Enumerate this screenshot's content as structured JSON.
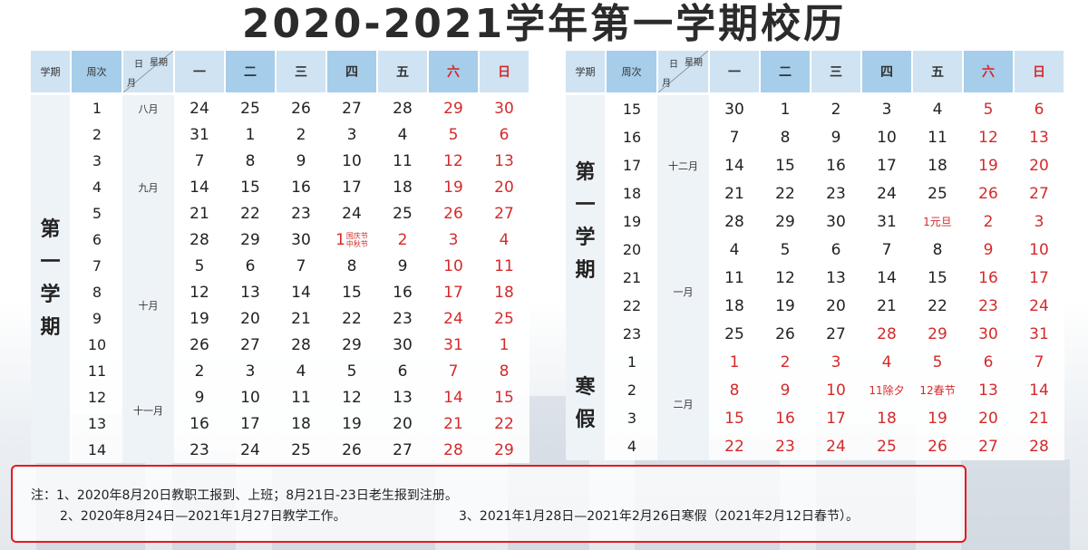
{
  "title": "2020-2021学年第一学期校历",
  "header": {
    "term": "学期",
    "week": "周次",
    "diag_day": "日",
    "diag_weekday": "星期",
    "diag_month": "月",
    "days": [
      "一",
      "二",
      "三",
      "四",
      "五",
      "六",
      "日"
    ]
  },
  "left": {
    "term_label": [
      "第",
      "一",
      "学",
      "期"
    ],
    "months": [
      "八月",
      "九月",
      "十月",
      "十一月"
    ],
    "rows": [
      {
        "week": "1",
        "days": [
          "24",
          "25",
          "26",
          "27",
          "28",
          "29",
          "30"
        ]
      },
      {
        "week": "2",
        "days": [
          "31",
          "1",
          "2",
          "3",
          "4",
          "5",
          "6"
        ]
      },
      {
        "week": "3",
        "days": [
          "7",
          "8",
          "9",
          "10",
          "11",
          "12",
          "13"
        ]
      },
      {
        "week": "4",
        "days": [
          "14",
          "15",
          "16",
          "17",
          "18",
          "19",
          "20"
        ]
      },
      {
        "week": "5",
        "days": [
          "21",
          "22",
          "23",
          "24",
          "25",
          "26",
          "27"
        ]
      },
      {
        "week": "6",
        "days": [
          "28",
          "29",
          "30",
          "1",
          "2",
          "3",
          "4"
        ]
      },
      {
        "week": "7",
        "days": [
          "5",
          "6",
          "7",
          "8",
          "9",
          "10",
          "11"
        ]
      },
      {
        "week": "8",
        "days": [
          "12",
          "13",
          "14",
          "15",
          "16",
          "17",
          "18"
        ]
      },
      {
        "week": "9",
        "days": [
          "19",
          "20",
          "21",
          "22",
          "23",
          "24",
          "25"
        ]
      },
      {
        "week": "10",
        "days": [
          "26",
          "27",
          "28",
          "29",
          "30",
          "31",
          "1"
        ]
      },
      {
        "week": "11",
        "days": [
          "2",
          "3",
          "4",
          "5",
          "6",
          "7",
          "8"
        ]
      },
      {
        "week": "12",
        "days": [
          "9",
          "10",
          "11",
          "12",
          "13",
          "14",
          "15"
        ]
      },
      {
        "week": "13",
        "days": [
          "16",
          "17",
          "18",
          "19",
          "20",
          "21",
          "22"
        ]
      },
      {
        "week": "14",
        "days": [
          "23",
          "24",
          "25",
          "26",
          "27",
          "28",
          "29"
        ]
      }
    ],
    "holiday_note_1": "国庆节",
    "holiday_note_2": "中秋节"
  },
  "right": {
    "term_label": [
      "第",
      "一",
      "学",
      "期"
    ],
    "break_label": [
      "寒",
      "假"
    ],
    "months": [
      "十二月",
      "一月",
      "二月"
    ],
    "rows": [
      {
        "week": "15",
        "days": [
          "30",
          "1",
          "2",
          "3",
          "4",
          "5",
          "6"
        ]
      },
      {
        "week": "16",
        "days": [
          "7",
          "8",
          "9",
          "10",
          "11",
          "12",
          "13"
        ]
      },
      {
        "week": "17",
        "days": [
          "14",
          "15",
          "16",
          "17",
          "18",
          "19",
          "20"
        ]
      },
      {
        "week": "18",
        "days": [
          "21",
          "22",
          "23",
          "24",
          "25",
          "26",
          "27"
        ]
      },
      {
        "week": "19",
        "days": [
          "28",
          "29",
          "30",
          "31",
          "1元旦",
          "2",
          "3"
        ]
      },
      {
        "week": "20",
        "days": [
          "4",
          "5",
          "6",
          "7",
          "8",
          "9",
          "10"
        ]
      },
      {
        "week": "21",
        "days": [
          "11",
          "12",
          "13",
          "14",
          "15",
          "16",
          "17"
        ]
      },
      {
        "week": "22",
        "days": [
          "18",
          "19",
          "20",
          "21",
          "22",
          "23",
          "24"
        ]
      },
      {
        "week": "23",
        "days": [
          "25",
          "26",
          "27",
          "28",
          "29",
          "30",
          "31"
        ]
      },
      {
        "week": "1",
        "days": [
          "1",
          "2",
          "3",
          "4",
          "5",
          "6",
          "7"
        ]
      },
      {
        "week": "2",
        "days": [
          "8",
          "9",
          "10",
          "11除夕",
          "12春节",
          "13",
          "14"
        ]
      },
      {
        "week": "3",
        "days": [
          "15",
          "16",
          "17",
          "18",
          "19",
          "20",
          "21"
        ]
      },
      {
        "week": "4",
        "days": [
          "22",
          "23",
          "24",
          "25",
          "26",
          "27",
          "28"
        ]
      }
    ]
  },
  "notes": {
    "line1": "注：1、2020年8月20日教职工报到、上班；8月21日-23日老生报到注册。",
    "line2": "2、2020年8月24日—2021年1月27日教学工作。",
    "line3": "3、2021年1月28日—2021年2月26日寒假（2021年2月12日春节）。"
  },
  "colors": {
    "header_light": "#cfe3f3",
    "header_dark": "#a6cde9",
    "weekend_red": "#d42a2a",
    "note_border": "#e8181e"
  }
}
